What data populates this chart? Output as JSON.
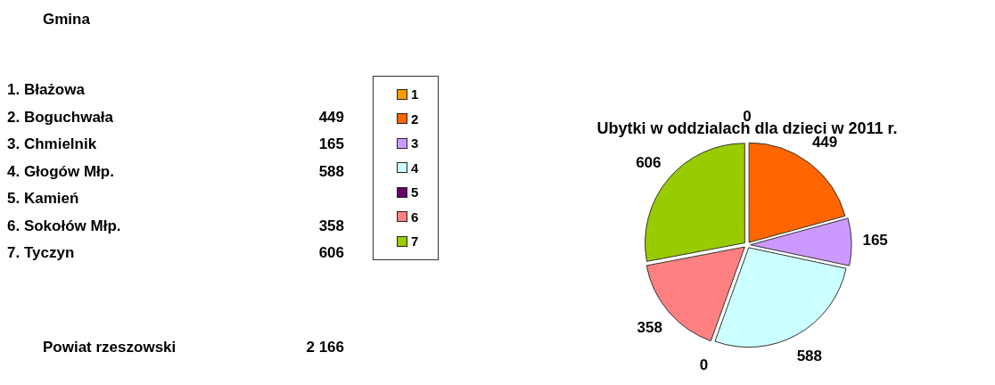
{
  "chart_data": [
    {
      "type": "other",
      "title": "Gmina",
      "categories": [
        "1. Błażowa",
        "2. Boguchwała",
        "3. Chmielnik",
        "4. Głogów Młp.",
        "5. Kamień",
        "6. Sokołów Młp.",
        "7. Tyczyn",
        "Powiat rzeszowski"
      ],
      "value_labels": [
        null,
        "449",
        "165",
        "588",
        null,
        "358",
        "606",
        "2 166"
      ]
    },
    {
      "type": "pie",
      "title": "Ubytki w oddzialach dla dzieci w 2011 r.",
      "categories": [
        "1",
        "2",
        "3",
        "4",
        "5",
        "6",
        "7"
      ],
      "values": [
        0,
        449,
        165,
        588,
        0,
        358,
        606
      ],
      "colors": [
        "#ff9900",
        "#ff6600",
        "#cc99ff",
        "#ccffff",
        "#660066",
        "#ff8080",
        "#99cc00"
      ],
      "value_labels": [
        "0",
        "449",
        "165",
        "588",
        "0",
        "358",
        "606"
      ],
      "legend": "left"
    }
  ]
}
